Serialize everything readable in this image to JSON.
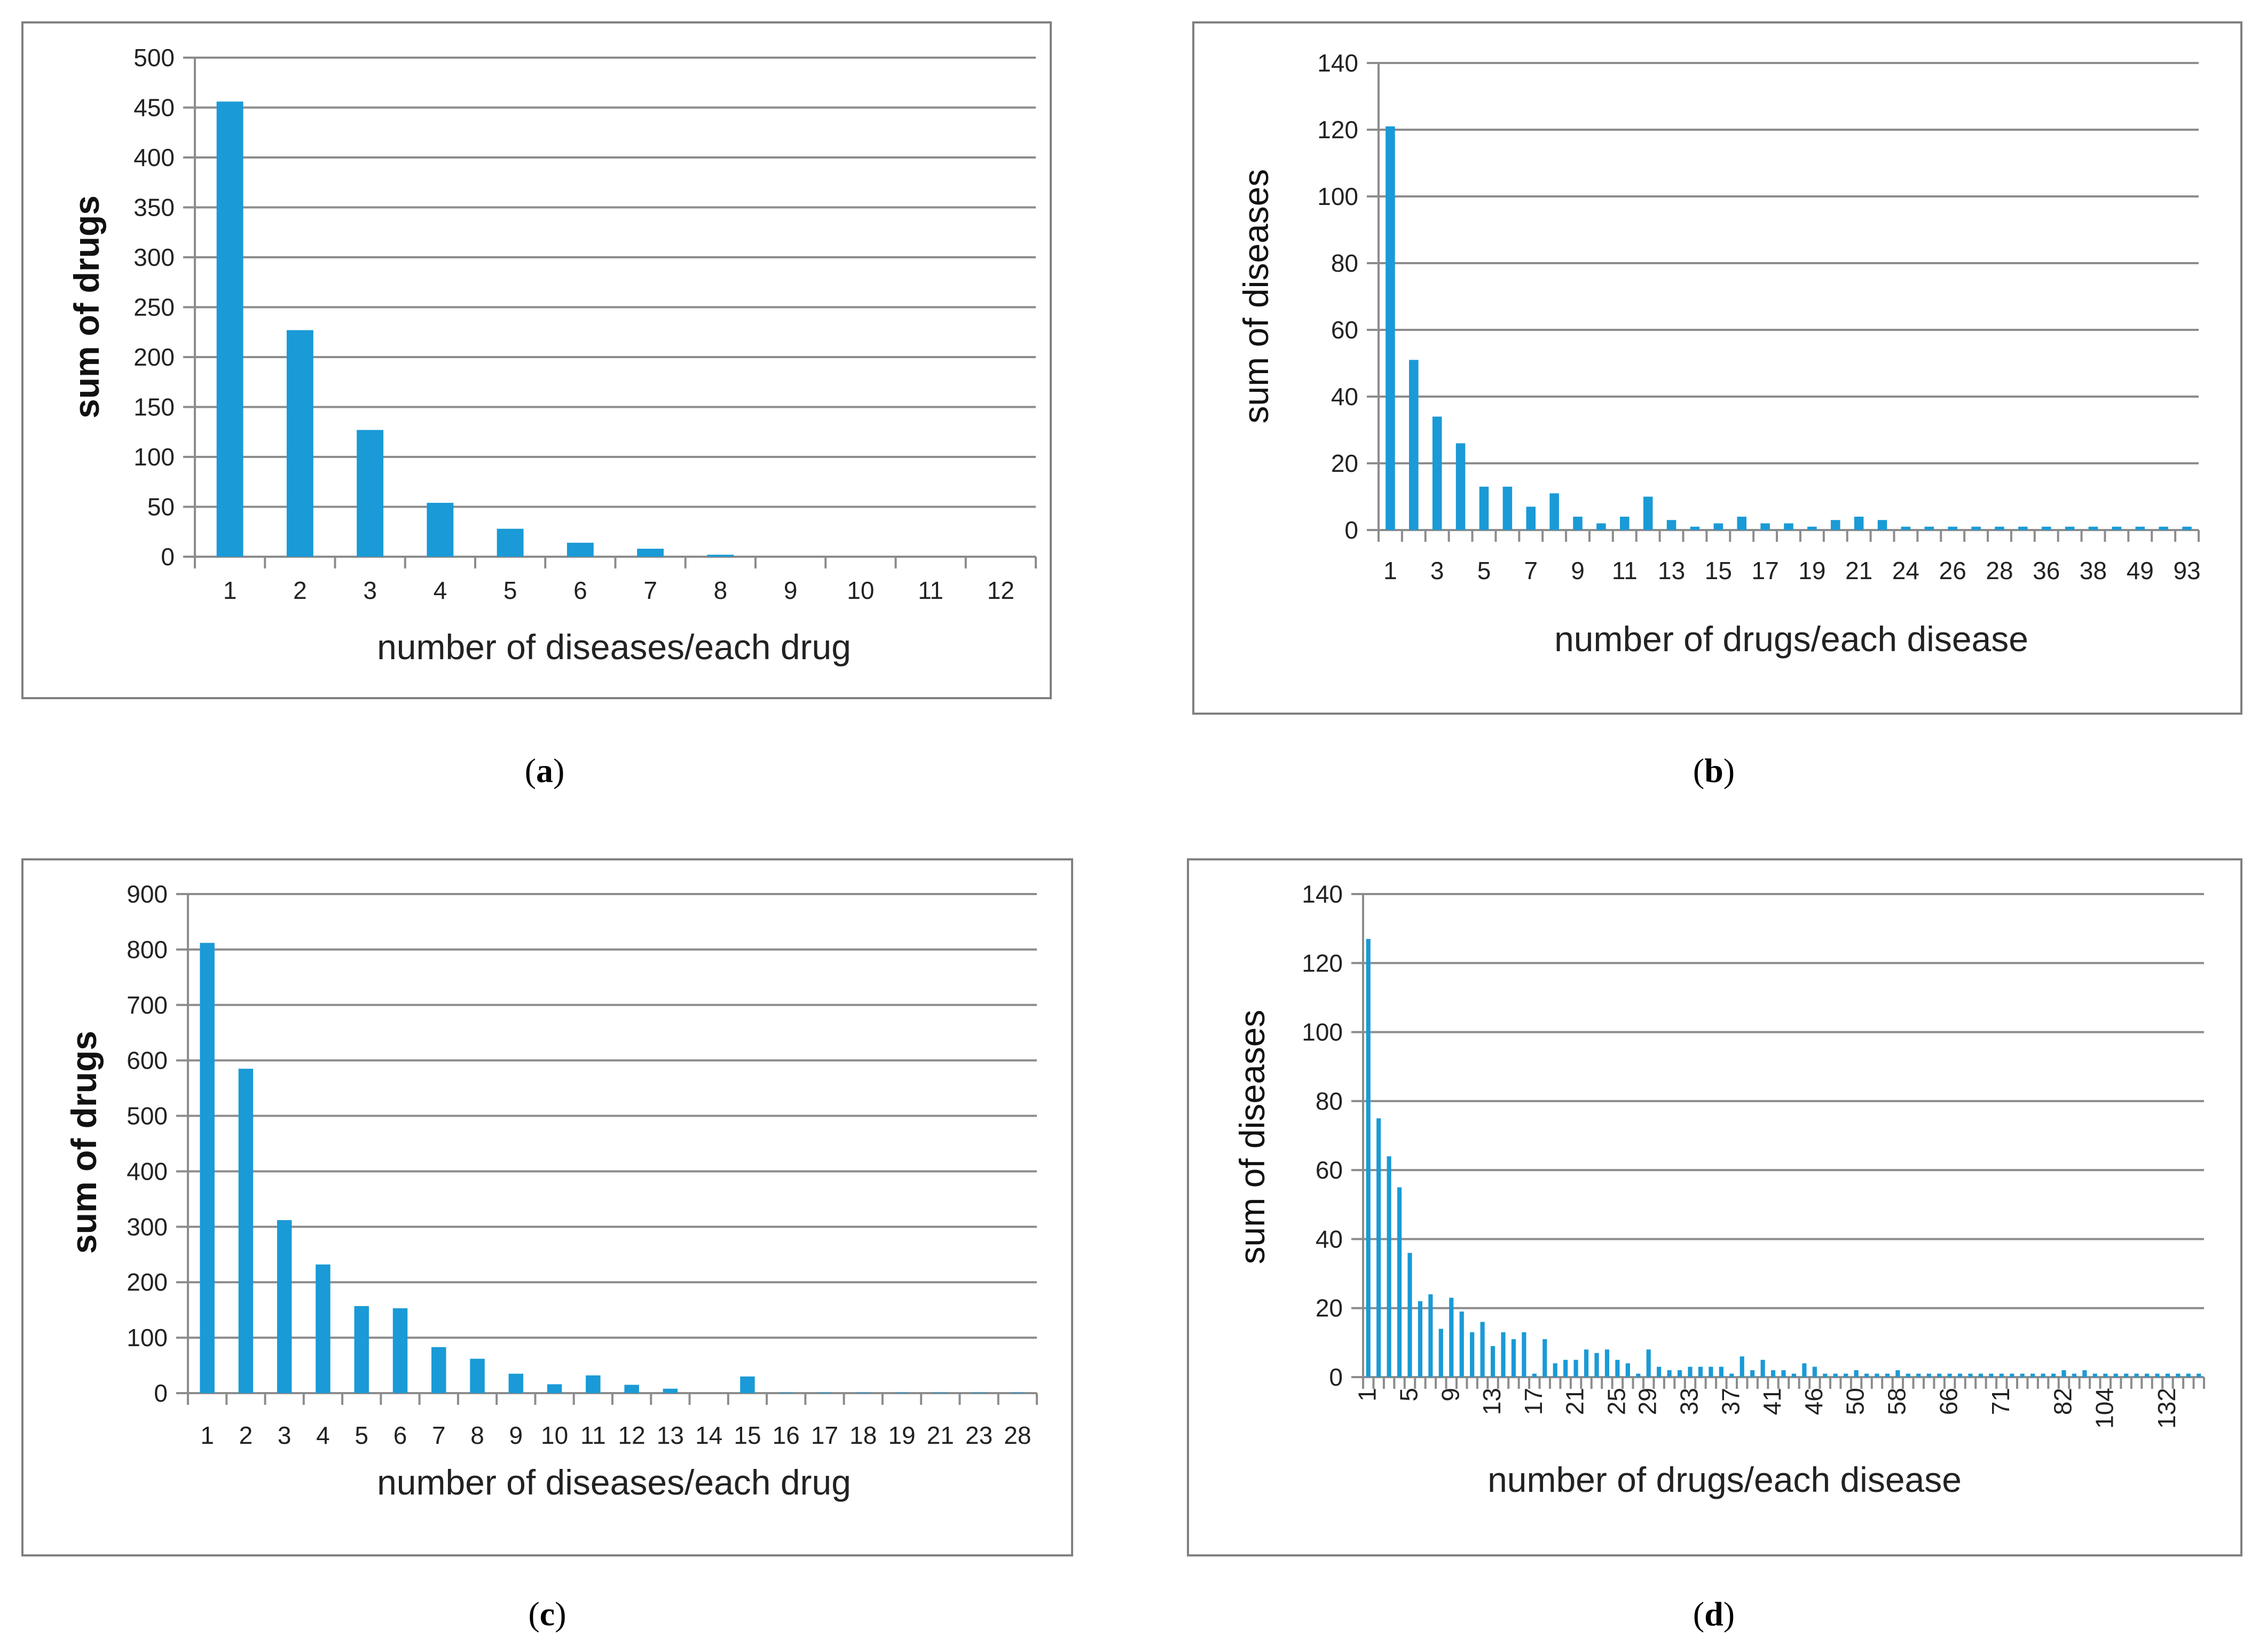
{
  "chart_data": [
    {
      "id": "a",
      "panel_label": "a",
      "type": "bar",
      "color": "#1a9ad6",
      "xlabel": "number of diseases/each drug",
      "ylabel": "sum of drugs",
      "ylim": [
        0,
        500
      ],
      "y_ticks": [
        0,
        50,
        100,
        150,
        200,
        250,
        300,
        350,
        400,
        450,
        500
      ],
      "categories": [
        "1",
        "2",
        "3",
        "4",
        "5",
        "6",
        "7",
        "8",
        "9",
        "10",
        "11",
        "12"
      ],
      "values": [
        456,
        227,
        127,
        54,
        28,
        14,
        8,
        2,
        0,
        0,
        0,
        0
      ],
      "x_tick_labels": [
        "1",
        "2",
        "3",
        "4",
        "5",
        "6",
        "7",
        "8",
        "9",
        "10",
        "11",
        "12"
      ]
    },
    {
      "id": "b",
      "panel_label": "b",
      "type": "bar",
      "color": "#1a9ad6",
      "xlabel": "number of drugs/each disease",
      "ylabel": "sum of diseases",
      "ylim": [
        0,
        140
      ],
      "y_ticks": [
        0,
        20,
        40,
        60,
        80,
        100,
        120,
        140
      ],
      "categories": [
        "1",
        "2",
        "3",
        "4",
        "5",
        "6",
        "7",
        "8",
        "9",
        "10",
        "11",
        "12",
        "13",
        "14",
        "15",
        "16",
        "17",
        "18",
        "19",
        "20",
        "21",
        "22",
        "24",
        "25",
        "26",
        "27",
        "28",
        "29",
        "36",
        "37",
        "38",
        "39",
        "49",
        "50",
        "93"
      ],
      "values": [
        121,
        51,
        34,
        26,
        13,
        13,
        7,
        11,
        4,
        2,
        4,
        10,
        3,
        1,
        2,
        4,
        2,
        2,
        1,
        3,
        4,
        3,
        1,
        1,
        1,
        1,
        1,
        1,
        1,
        1,
        1,
        1,
        1,
        1,
        1
      ],
      "x_tick_labels": [
        "1",
        "3",
        "5",
        "7",
        "9",
        "11",
        "13",
        "15",
        "17",
        "19",
        "21",
        "24",
        "26",
        "28",
        "36",
        "38",
        "49",
        "93"
      ]
    },
    {
      "id": "c",
      "panel_label": "c",
      "type": "bar",
      "color": "#1a9ad6",
      "xlabel": "number of diseases/each drug",
      "ylabel": "sum of drugs",
      "ylim": [
        0,
        900
      ],
      "y_ticks": [
        0,
        100,
        200,
        300,
        400,
        500,
        600,
        700,
        800,
        900
      ],
      "categories": [
        "1",
        "2",
        "3",
        "4",
        "5",
        "6",
        "7",
        "8",
        "9",
        "10",
        "11",
        "12",
        "13",
        "14",
        "15",
        "16",
        "17",
        "18",
        "19",
        "21",
        "23",
        "28"
      ],
      "values": [
        812,
        585,
        312,
        232,
        157,
        153,
        83,
        62,
        35,
        16,
        32,
        15,
        8,
        0,
        30,
        1,
        1,
        1,
        1,
        1,
        1,
        1
      ],
      "x_tick_labels": [
        "1",
        "2",
        "3",
        "4",
        "5",
        "6",
        "7",
        "8",
        "9",
        "10",
        "11",
        "12",
        "13",
        "14",
        "15",
        "16",
        "17",
        "18",
        "19",
        "21",
        "23",
        "28"
      ]
    },
    {
      "id": "d",
      "panel_label": "d",
      "type": "bar",
      "color": "#1a9ad6",
      "xlabel": "number of drugs/each disease",
      "ylabel": "sum of diseases",
      "ylim": [
        0,
        140
      ],
      "y_ticks": [
        0,
        20,
        40,
        60,
        80,
        100,
        120,
        140
      ],
      "categories": [
        "1",
        "2",
        "3",
        "4",
        "5",
        "6",
        "7",
        "8",
        "9",
        "10",
        "11",
        "12",
        "13",
        "14",
        "15",
        "16",
        "17",
        "18",
        "19",
        "20",
        "21",
        "22",
        "23",
        "24",
        "25",
        "26",
        "27",
        "29",
        "30",
        "31",
        "32",
        "33",
        "34",
        "35",
        "36",
        "37",
        "38",
        "39",
        "40",
        "41",
        "42",
        "44",
        "45",
        "46",
        "47",
        "48",
        "49",
        "50",
        "52",
        "53",
        "55",
        "58",
        "59",
        "60",
        "61",
        "64",
        "66",
        "67",
        "68",
        "69",
        "70",
        "71",
        "72",
        "73",
        "75",
        "77",
        "78",
        "82",
        "84",
        "94",
        "100",
        "104",
        "109",
        "111",
        "120",
        "123",
        "127",
        "132",
        "141",
        "150",
        "152"
      ],
      "values": [
        127,
        75,
        64,
        55,
        36,
        22,
        24,
        14,
        23,
        19,
        13,
        16,
        9,
        13,
        11,
        13,
        1,
        11,
        4,
        5,
        5,
        8,
        7,
        8,
        5,
        4,
        1,
        8,
        3,
        2,
        2,
        3,
        3,
        3,
        3,
        1,
        6,
        2,
        5,
        2,
        2,
        1,
        4,
        3,
        1,
        1,
        1,
        2,
        1,
        1,
        1,
        2,
        1,
        1,
        1,
        1,
        1,
        1,
        1,
        1,
        1,
        1,
        1,
        1,
        1,
        1,
        1,
        2,
        1,
        2,
        1,
        1,
        1,
        1,
        1,
        1,
        1,
        1,
        1,
        1,
        1
      ],
      "x_tick_labels": [
        "1",
        "5",
        "9",
        "13",
        "17",
        "21",
        "25",
        "29",
        "33",
        "37",
        "41",
        "46",
        "50",
        "58",
        "66",
        "71",
        "82",
        "104",
        "132"
      ]
    }
  ]
}
